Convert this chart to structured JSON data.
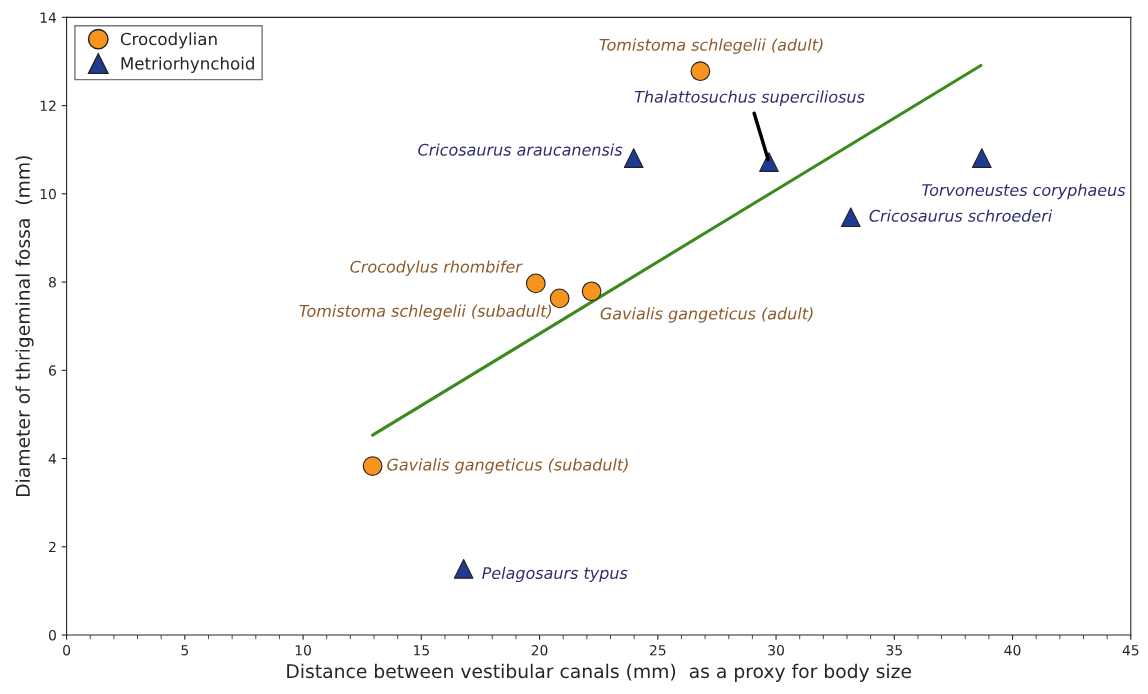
{
  "chart_data": {
    "type": "scatter",
    "xlabel": "Distance between vestibular canals (mm)  as a proxy for body size",
    "ylabel": "Diameter of thrigeminal fossa  (mm)",
    "xlim": [
      0,
      45
    ],
    "xticks": [
      0,
      5,
      10,
      15,
      20,
      25,
      30,
      35,
      40,
      45
    ],
    "ylim": [
      0,
      14
    ],
    "yticks": [
      0,
      2,
      4,
      6,
      8,
      10,
      12,
      14
    ],
    "grid": false,
    "legend": "top left",
    "series": [
      {
        "name": "Crocodylian",
        "color": "#f7941d",
        "marker": "circle",
        "x": [
          26.8,
          19.84,
          20.85,
          22.2,
          12.94
        ],
        "values": [
          12.78,
          7.97,
          7.63,
          7.79,
          3.83
        ]
      },
      {
        "name": "Metriorhynchoid",
        "color": "#1f3a93",
        "marker": "triangle",
        "x": [
          23.98,
          29.7,
          38.7,
          33.16,
          16.79
        ],
        "values": [
          10.81,
          10.72,
          10.81,
          9.47,
          1.5
        ]
      },
      {
        "type": "line",
        "color": "#3a8a1e",
        "x": [
          12.94,
          38.66
        ],
        "values": [
          4.53,
          12.91
        ]
      }
    ],
    "annotations": [
      {
        "text": "Tomistoma schlegelii (adult)",
        "x": 26.8,
        "y": 12.78
      },
      {
        "text": "Thalattosuchus superciliosus",
        "x": 29.7,
        "y": 10.72
      },
      {
        "text": "Cricosaurus araucanensis",
        "x": 23.98,
        "y": 10.81
      },
      {
        "text": "Torvoneustes coryphaeus",
        "x": 38.7,
        "y": 10.81
      },
      {
        "text": "Cricosaurus schroederi",
        "x": 33.16,
        "y": 9.47
      },
      {
        "text": "Crocodylus rhombifer",
        "x": 19.84,
        "y": 7.97
      },
      {
        "text": "Tomistoma schlegelii (subadult)",
        "x": 20.85,
        "y": 7.63
      },
      {
        "text": "Gavialis gangeticus (adult)",
        "x": 22.2,
        "y": 7.79
      },
      {
        "text": "Gavialis gangeticus (subadult)",
        "x": 12.94,
        "y": 3.83
      },
      {
        "text": "Pelagosaurs typus",
        "x": 16.79,
        "y": 1.5
      }
    ]
  }
}
